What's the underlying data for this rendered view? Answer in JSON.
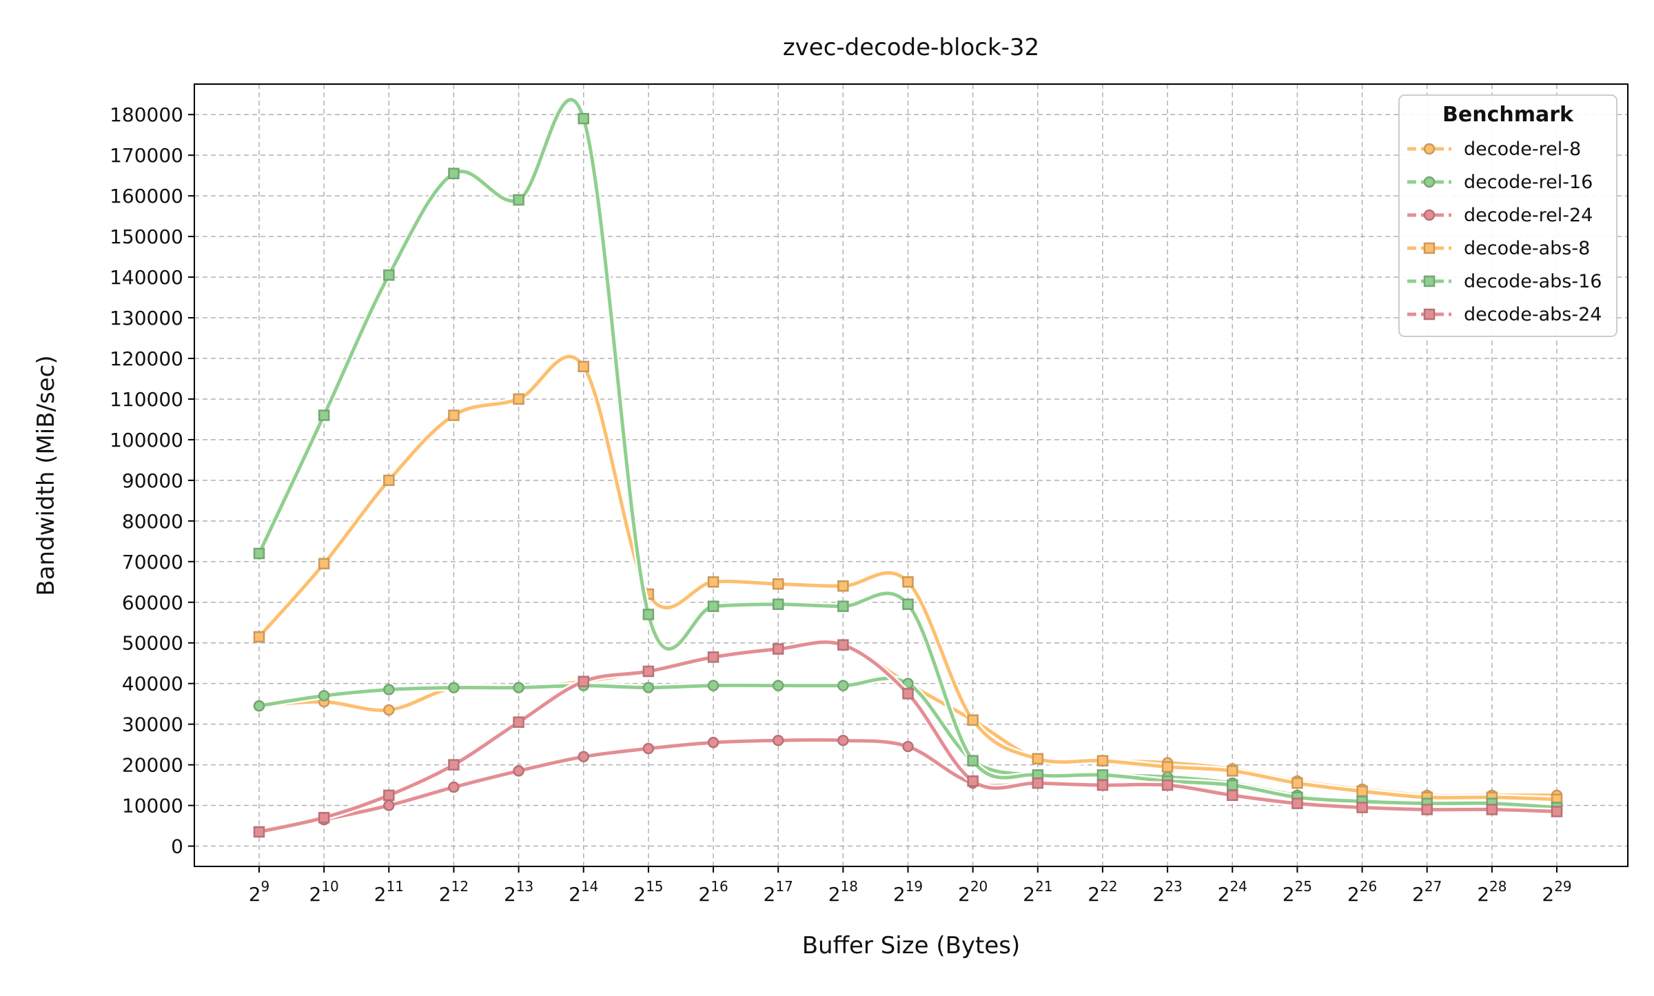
{
  "chart_data": {
    "type": "line",
    "title": "zvec-decode-block-32",
    "xlabel": "Buffer Size (Bytes)",
    "ylabel": "Bandwidth (MiB/sec)",
    "x_scale": "log2",
    "x": [
      512,
      1024,
      2048,
      4096,
      8192,
      16384,
      32768,
      65536,
      131072,
      262144,
      524288,
      1048576,
      2097152,
      4194304,
      8388608,
      16777216,
      33554432,
      67108864,
      134217728,
      268435456,
      536870912
    ],
    "x_tick_labels": [
      {
        "base": "2",
        "exp": "9"
      },
      {
        "base": "2",
        "exp": "10"
      },
      {
        "base": "2",
        "exp": "11"
      },
      {
        "base": "2",
        "exp": "12"
      },
      {
        "base": "2",
        "exp": "13"
      },
      {
        "base": "2",
        "exp": "14"
      },
      {
        "base": "2",
        "exp": "15"
      },
      {
        "base": "2",
        "exp": "16"
      },
      {
        "base": "2",
        "exp": "17"
      },
      {
        "base": "2",
        "exp": "18"
      },
      {
        "base": "2",
        "exp": "19"
      },
      {
        "base": "2",
        "exp": "20"
      },
      {
        "base": "2",
        "exp": "21"
      },
      {
        "base": "2",
        "exp": "22"
      },
      {
        "base": "2",
        "exp": "23"
      },
      {
        "base": "2",
        "exp": "24"
      },
      {
        "base": "2",
        "exp": "25"
      },
      {
        "base": "2",
        "exp": "26"
      },
      {
        "base": "2",
        "exp": "27"
      },
      {
        "base": "2",
        "exp": "28"
      },
      {
        "base": "2",
        "exp": "29"
      }
    ],
    "ylim": [
      -5000,
      187500
    ],
    "y_ticks": [
      0,
      10000,
      20000,
      30000,
      40000,
      50000,
      60000,
      70000,
      80000,
      90000,
      100000,
      110000,
      120000,
      130000,
      140000,
      150000,
      160000,
      170000,
      180000
    ],
    "y_tick_labels": [
      "0",
      "10000",
      "20000",
      "30000",
      "40000",
      "50000",
      "60000",
      "70000",
      "80000",
      "90000",
      "100000",
      "110000",
      "120000",
      "130000",
      "140000",
      "150000",
      "160000",
      "170000",
      "180000"
    ],
    "grid": true,
    "legend": {
      "title": "Benchmark",
      "position": "top-right"
    },
    "series": [
      {
        "name": "decode-rel-8",
        "color": "#fdbf6f",
        "marker": "circle",
        "values": [
          34500,
          35500,
          33500,
          39000,
          39000,
          40500,
          43000,
          46500,
          48500,
          49500,
          40000,
          31000,
          21500,
          21000,
          20500,
          19000,
          16000,
          14000,
          12500,
          12500,
          12500
        ]
      },
      {
        "name": "decode-rel-16",
        "color": "#90cf8e",
        "marker": "circle",
        "values": [
          34500,
          37000,
          38500,
          39000,
          39000,
          39500,
          39000,
          39500,
          39500,
          39500,
          40000,
          21000,
          17500,
          17500,
          17000,
          15500,
          12500,
          11000,
          11000,
          10500,
          10000
        ]
      },
      {
        "name": "decode-rel-24",
        "color": "#e38e93",
        "marker": "circle",
        "values": [
          3500,
          6500,
          10000,
          14500,
          18500,
          22000,
          24000,
          25500,
          26000,
          26000,
          24500,
          15500,
          15500,
          15000,
          15000,
          12500,
          10500,
          10000,
          9000,
          9000,
          8500
        ]
      },
      {
        "name": "decode-abs-8",
        "color": "#fdbf6f",
        "marker": "square",
        "values": [
          51500,
          69500,
          90000,
          106000,
          110000,
          118000,
          62000,
          65000,
          64500,
          64000,
          65000,
          31000,
          21500,
          21000,
          19500,
          18500,
          15500,
          13500,
          12000,
          12000,
          11500
        ]
      },
      {
        "name": "decode-abs-16",
        "color": "#90cf8e",
        "marker": "square",
        "values": [
          72000,
          106000,
          140500,
          165500,
          159000,
          179000,
          57000,
          59000,
          59500,
          59000,
          59500,
          21000,
          17500,
          17500,
          16000,
          15000,
          12000,
          11000,
          10500,
          10500,
          9500
        ]
      },
      {
        "name": "decode-abs-24",
        "color": "#e38e93",
        "marker": "square",
        "values": [
          3500,
          7000,
          12500,
          20000,
          30500,
          40500,
          43000,
          46500,
          48500,
          49500,
          37500,
          16000,
          15500,
          15000,
          15000,
          12500,
          10500,
          9500,
          9000,
          9000,
          8500
        ]
      }
    ]
  }
}
